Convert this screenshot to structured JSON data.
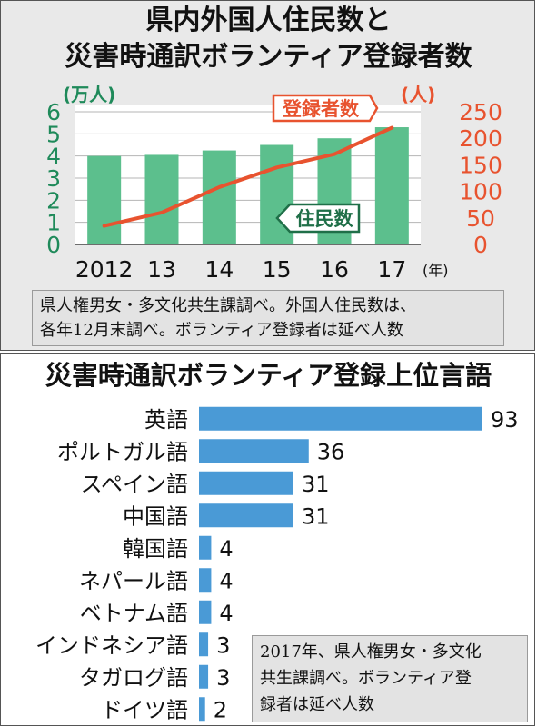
{
  "chart_data": [
    {
      "type": "bar",
      "title": "県内外国人住民数と\n災害時通訳ボランティア登録者数",
      "categories": [
        "2012",
        "13",
        "14",
        "15",
        "16",
        "17"
      ],
      "x_unit": "(年)",
      "series": [
        {
          "name": "住民数",
          "type": "bar",
          "axis": "left",
          "values": [
            4.0,
            4.05,
            4.25,
            4.5,
            4.8,
            5.3
          ]
        },
        {
          "name": "登録者数",
          "type": "line",
          "axis": "right",
          "values": [
            35,
            60,
            108,
            145,
            170,
            220
          ]
        }
      ],
      "left_axis": {
        "unit": "(万人)",
        "ylim": [
          0,
          6
        ],
        "ticks": [
          "0",
          "1",
          "2",
          "3",
          "4",
          "5",
          "6"
        ]
      },
      "right_axis": {
        "unit": "(人)",
        "ylim": [
          0,
          250
        ],
        "ticks": [
          "0",
          "50",
          "100",
          "150",
          "200",
          "250"
        ]
      },
      "grid": true,
      "note": [
        "県人権男女・多文化共生課調べ。外国人住民数は、",
        "各年12月末調べ。ボランティア登録者は延べ人数"
      ],
      "colors": {
        "bar": "#5cbf8d",
        "line": "#e8532f",
        "left_axis": "#1f8a5a",
        "right_axis": "#e8532f"
      }
    },
    {
      "type": "bar",
      "orientation": "horizontal",
      "title": "災害時通訳ボランティア登録上位言語",
      "categories": [
        "英語",
        "ポルトガル語",
        "スペイン語",
        "中国語",
        "韓国語",
        "ネパール語",
        "ベトナム語",
        "インドネシア語",
        "タガログ語",
        "ドイツ語"
      ],
      "values": [
        93,
        36,
        31,
        31,
        4,
        4,
        4,
        3,
        3,
        2
      ],
      "note": [
        "2017年、県人権男女・多文化",
        "共生課調べ。ボランティア登",
        "録者は延べ人数"
      ],
      "colors": {
        "bar": "#4a9ad6"
      }
    }
  ]
}
